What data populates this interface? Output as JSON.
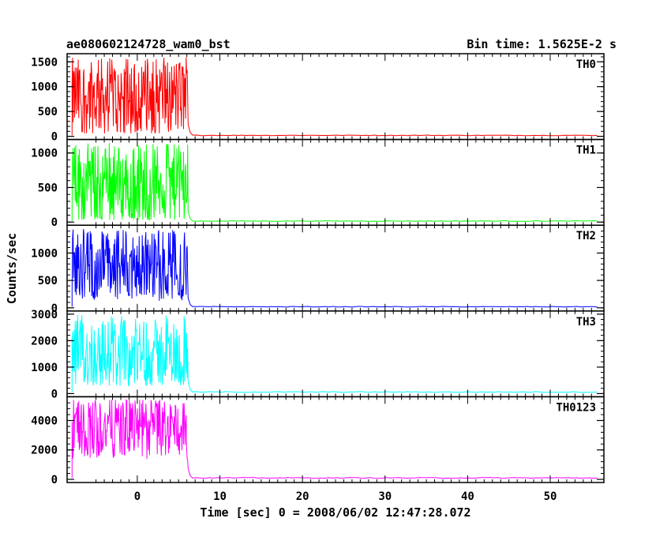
{
  "chart_data": {
    "type": "line",
    "title": "ae080602124728_wam0_bst",
    "subtitle": "Bin time: 1.5625E-2 s",
    "xlabel": "Time [sec] 0 = 2008/06/02 12:47:28.072",
    "ylabel": "Counts/sec",
    "xlim": [
      -8.5,
      56.5
    ],
    "xticks": [
      0,
      10,
      20,
      30,
      40,
      50
    ],
    "grid": false,
    "panels": [
      {
        "name": "TH0",
        "color": "#ff0000",
        "ylim": [
          0,
          1600
        ],
        "yticks": [
          0,
          500,
          1000,
          1500
        ],
        "burst_range": [
          -7.9,
          6.1
        ],
        "burst_mean": 800,
        "burst_min": 100,
        "burst_max": 1600,
        "tail_value": 80,
        "background": 20
      },
      {
        "name": "TH1",
        "color": "#00ff00",
        "ylim": [
          0,
          1150
        ],
        "yticks": [
          0,
          500,
          1000
        ],
        "burst_range": [
          -7.9,
          6.1
        ],
        "burst_mean": 560,
        "burst_min": 60,
        "burst_max": 1150,
        "tail_value": 50,
        "background": 15
      },
      {
        "name": "TH2",
        "color": "#0000ff",
        "ylim": [
          0,
          1450
        ],
        "yticks": [
          0,
          500,
          1000
        ],
        "burst_range": [
          -7.9,
          6.1
        ],
        "burst_mean": 780,
        "burst_min": 200,
        "burst_max": 1450,
        "tail_value": 60,
        "background": 20
      },
      {
        "name": "TH3",
        "color": "#00ffff",
        "ylim": [
          0,
          3000
        ],
        "yticks": [
          0,
          1000,
          2000,
          3000
        ],
        "burst_range": [
          -7.9,
          6.1
        ],
        "burst_mean": 1500,
        "burst_min": 500,
        "burst_max": 3000,
        "tail_value": 150,
        "background": 60
      },
      {
        "name": "TH0123",
        "color": "#ff00ff",
        "ylim": [
          0,
          5400
        ],
        "yticks": [
          0,
          2000,
          4000
        ],
        "burst_range": [
          -7.9,
          6.1
        ],
        "burst_mean": 3500,
        "burst_min": 1500,
        "burst_max": 5400,
        "tail_value": 250,
        "background": 100
      }
    ]
  }
}
